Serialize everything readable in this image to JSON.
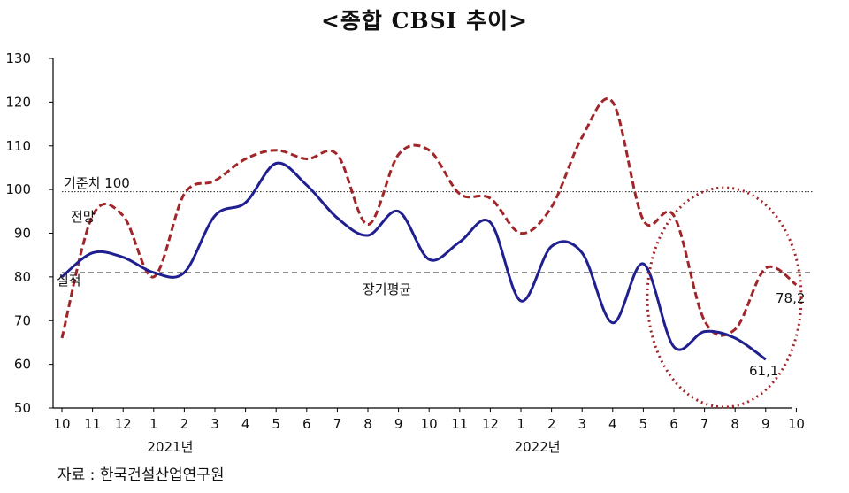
{
  "title": "<종합 CBSI 추이>",
  "source": "자료 : 한국건설산업연구원",
  "chart_data": {
    "type": "line",
    "title": "<종합 CBSI 추이>",
    "ylim": [
      50,
      130
    ],
    "yticks": [
      50,
      60,
      70,
      80,
      90,
      100,
      110,
      120,
      130
    ],
    "categories": [
      "10",
      "11",
      "12",
      "1",
      "2",
      "3",
      "4",
      "5",
      "6",
      "7",
      "8",
      "9",
      "10",
      "11",
      "12",
      "1",
      "2",
      "3",
      "4",
      "5",
      "6",
      "7",
      "8",
      "9",
      "10"
    ],
    "year_labels": [
      {
        "label": "2021년",
        "at_index": 4
      },
      {
        "label": "2022년",
        "at_index": 16
      }
    ],
    "series": [
      {
        "name": "전망",
        "color": "#a0262a",
        "dash": true,
        "values": [
          66,
          94,
          94,
          80,
          99,
          102,
          107,
          109,
          107,
          108,
          92,
          108,
          109,
          99,
          98,
          90,
          96,
          112,
          120,
          93,
          94,
          70,
          68,
          82,
          78.2
        ]
      },
      {
        "name": "실적",
        "color": "#1f1f8f",
        "dash": false,
        "values": [
          80,
          85.5,
          84.5,
          81,
          81,
          94,
          97,
          106,
          101,
          93.5,
          89.5,
          95,
          84,
          88,
          92.5,
          74.5,
          87,
          85.5,
          69.5,
          83,
          64,
          67.5,
          66,
          61.1,
          null
        ]
      }
    ],
    "reference_lines": [
      {
        "label": "기준치 100",
        "value": 99.5,
        "style": "dotted"
      },
      {
        "label": "장기평균",
        "value": 81,
        "style": "dashed"
      }
    ],
    "annotations": [
      {
        "text": "78,2"
      },
      {
        "text": "61,1"
      }
    ]
  }
}
